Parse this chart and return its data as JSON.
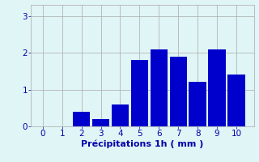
{
  "categories": [
    0,
    1,
    2,
    3,
    4,
    5,
    6,
    7,
    8,
    9,
    10
  ],
  "values": [
    0,
    0,
    0.4,
    0.2,
    0.6,
    1.8,
    2.1,
    1.9,
    1.2,
    2.1,
    1.4
  ],
  "bar_color": "#0000cc",
  "background_color": "#e0f5f5",
  "xlabel": "Précipitations 1h ( mm )",
  "ylim": [
    0,
    3.3
  ],
  "yticks": [
    0,
    1,
    2,
    3
  ],
  "xticks": [
    0,
    1,
    2,
    3,
    4,
    5,
    6,
    7,
    8,
    9,
    10
  ],
  "grid_color": "#aaaaaa",
  "axis_color": "#0000aa",
  "label_fontsize": 8,
  "tick_fontsize": 7.5,
  "bar_width": 0.9
}
